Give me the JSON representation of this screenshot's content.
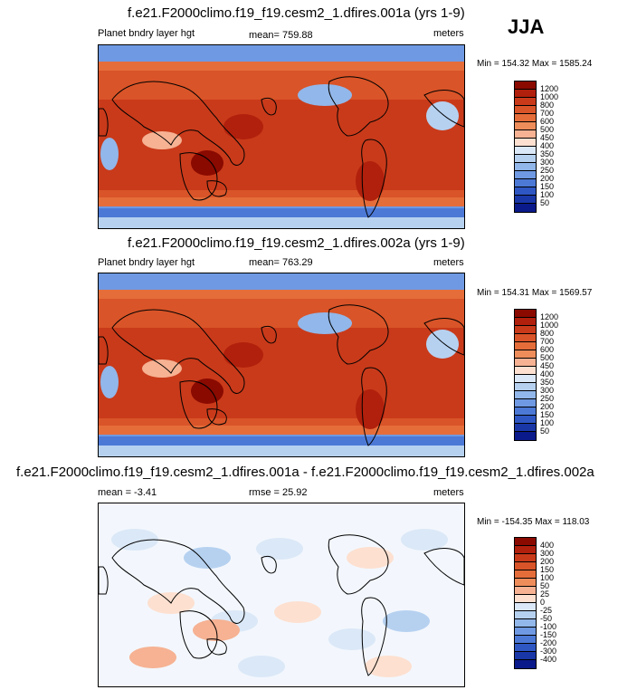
{
  "season": "JJA",
  "panels": [
    {
      "title": "f.e21.F2000climo.f19_f19.cesm2_1.dfires.001a (yrs 1-9)",
      "left_label": "Planet bndry layer hgt",
      "center_label": "mean= 759.88",
      "units": "meters",
      "minmax": "Min = 154.32 Max = 1585.24",
      "levels": [
        "1200",
        "1000",
        "800",
        "700",
        "600",
        "500",
        "450",
        "400",
        "350",
        "300",
        "250",
        "200",
        "150",
        "100",
        "50"
      ],
      "colors": [
        "#8a0a00",
        "#b0200c",
        "#c93a1a",
        "#d95428",
        "#e56d3a",
        "#ee8c5a",
        "#f6b293",
        "#fde0d0",
        "#dbe8f7",
        "#b6d1f0",
        "#92b7ea",
        "#6f99e2",
        "#4c79d6",
        "#2e57c4",
        "#1a37a8",
        "#0a1a8a"
      ],
      "chart_data": {
        "type": "heatmap",
        "title": "f.e21.F2000climo.f19_f19.cesm2_1.dfires.001a (yrs 1-9)",
        "mean": 759.88,
        "min": 154.32,
        "max": 1585.24,
        "units": "meters",
        "variable": "Planet bndry layer hgt",
        "season": "JJA"
      }
    },
    {
      "title": "f.e21.F2000climo.f19_f19.cesm2_1.dfires.002a (yrs 1-9)",
      "left_label": "Planet bndry layer hgt",
      "center_label": "mean= 763.29",
      "units": "meters",
      "minmax": "Min = 154.31 Max = 1569.57",
      "levels": [
        "1200",
        "1000",
        "800",
        "700",
        "600",
        "500",
        "450",
        "400",
        "350",
        "300",
        "250",
        "200",
        "150",
        "100",
        "50"
      ],
      "colors": [
        "#8a0a00",
        "#b0200c",
        "#c93a1a",
        "#d95428",
        "#e56d3a",
        "#ee8c5a",
        "#f6b293",
        "#fde0d0",
        "#dbe8f7",
        "#b6d1f0",
        "#92b7ea",
        "#6f99e2",
        "#4c79d6",
        "#2e57c4",
        "#1a37a8",
        "#0a1a8a"
      ],
      "chart_data": {
        "type": "heatmap",
        "title": "f.e21.F2000climo.f19_f19.cesm2_1.dfires.002a (yrs 1-9)",
        "mean": 763.29,
        "min": 154.31,
        "max": 1569.57,
        "units": "meters",
        "variable": "Planet bndry layer hgt",
        "season": "JJA"
      }
    },
    {
      "title": "f.e21.F2000climo.f19_f19.cesm2_1.dfires.001a - f.e21.F2000climo.f19_f19.cesm2_1.dfires.002a",
      "left_label": "mean =  -3.41",
      "center_label": "rmse =  25.92",
      "units": "meters",
      "minmax": "Min = -154.35 Max = 118.03",
      "levels": [
        "400",
        "300",
        "200",
        "150",
        "100",
        "50",
        "25",
        "0",
        "-25",
        "-50",
        "-100",
        "-150",
        "-200",
        "-300",
        "-400"
      ],
      "colors": [
        "#8a0a00",
        "#b0200c",
        "#c93a1a",
        "#d95428",
        "#e56d3a",
        "#ee8c5a",
        "#f6b293",
        "#fde0d0",
        "#dbe8f7",
        "#b6d1f0",
        "#92b7ea",
        "#6f99e2",
        "#4c79d6",
        "#2e57c4",
        "#1a37a8",
        "#0a1a8a"
      ],
      "chart_data": {
        "type": "heatmap",
        "title": "f.e21.F2000climo.f19_f19.cesm2_1.dfires.001a - f.e21.F2000climo.f19_f19.cesm2_1.dfires.002a",
        "mean": -3.41,
        "rmse": 25.92,
        "min": -154.35,
        "max": 118.03,
        "units": "meters",
        "season": "JJA"
      }
    }
  ]
}
